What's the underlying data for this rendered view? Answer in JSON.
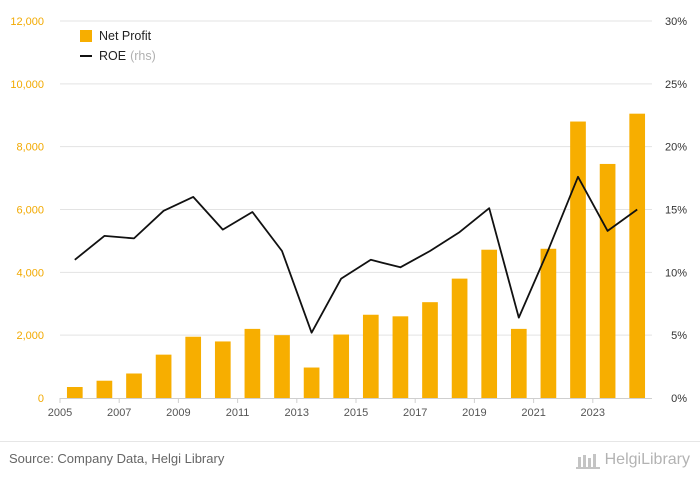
{
  "chart_data": {
    "type": "bar",
    "categories": [
      "2005",
      "2006",
      "2007",
      "2008",
      "2009",
      "2010",
      "2011",
      "2012",
      "2013",
      "2014",
      "2015",
      "2016",
      "2017",
      "2018",
      "2019",
      "2020",
      "2021",
      "2022",
      "2023",
      "2024"
    ],
    "x_tick_labels": [
      "2005",
      "2007",
      "2009",
      "2011",
      "2013",
      "2015",
      "2017",
      "2019",
      "2021",
      "2023"
    ],
    "series": [
      {
        "name": "Net Profit",
        "type": "bar",
        "axis": "left",
        "color": "#f7ae00",
        "values": [
          350,
          550,
          780,
          1380,
          1950,
          1800,
          2200,
          2000,
          970,
          2020,
          2650,
          2600,
          3050,
          3800,
          4720,
          2200,
          4750,
          8800,
          7450,
          9050
        ]
      },
      {
        "name": "ROE",
        "legend_suffix": "(rhs)",
        "type": "line",
        "axis": "right",
        "color": "#111111",
        "values": [
          11.0,
          12.9,
          12.7,
          14.9,
          16.0,
          13.4,
          14.8,
          11.7,
          5.2,
          9.5,
          11.0,
          10.4,
          11.7,
          13.2,
          15.1,
          6.4,
          11.8,
          17.6,
          13.3,
          15.0
        ]
      }
    ],
    "y_left": {
      "min": 0,
      "max": 12000,
      "ticks": [
        "0",
        "2,000",
        "4,000",
        "6,000",
        "8,000",
        "10,000",
        "12,000"
      ],
      "tick_color": "#f2a900"
    },
    "y_right": {
      "min": 0,
      "max": 30,
      "ticks": [
        "0%",
        "5%",
        "10%",
        "15%",
        "20%",
        "25%",
        "30%"
      ]
    },
    "grid": true,
    "legend_position": "top-left"
  },
  "footer": {
    "source": "Source: Company Data, Helgi Library",
    "brand": "HelgiLibrary"
  }
}
